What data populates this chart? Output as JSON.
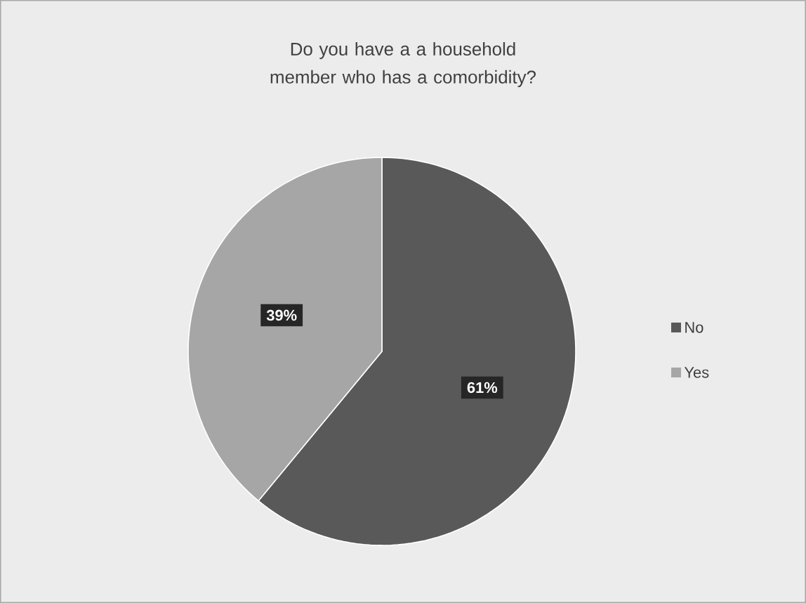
{
  "chart_data": {
    "type": "pie",
    "title": "Do you have a a household member who has a comorbidity?",
    "categories": [
      "No",
      "Yes"
    ],
    "values": [
      61,
      39
    ],
    "colors": [
      "#595959",
      "#a6a6a6"
    ],
    "value_labels": [
      "61%",
      "39%"
    ],
    "legend": "right"
  }
}
